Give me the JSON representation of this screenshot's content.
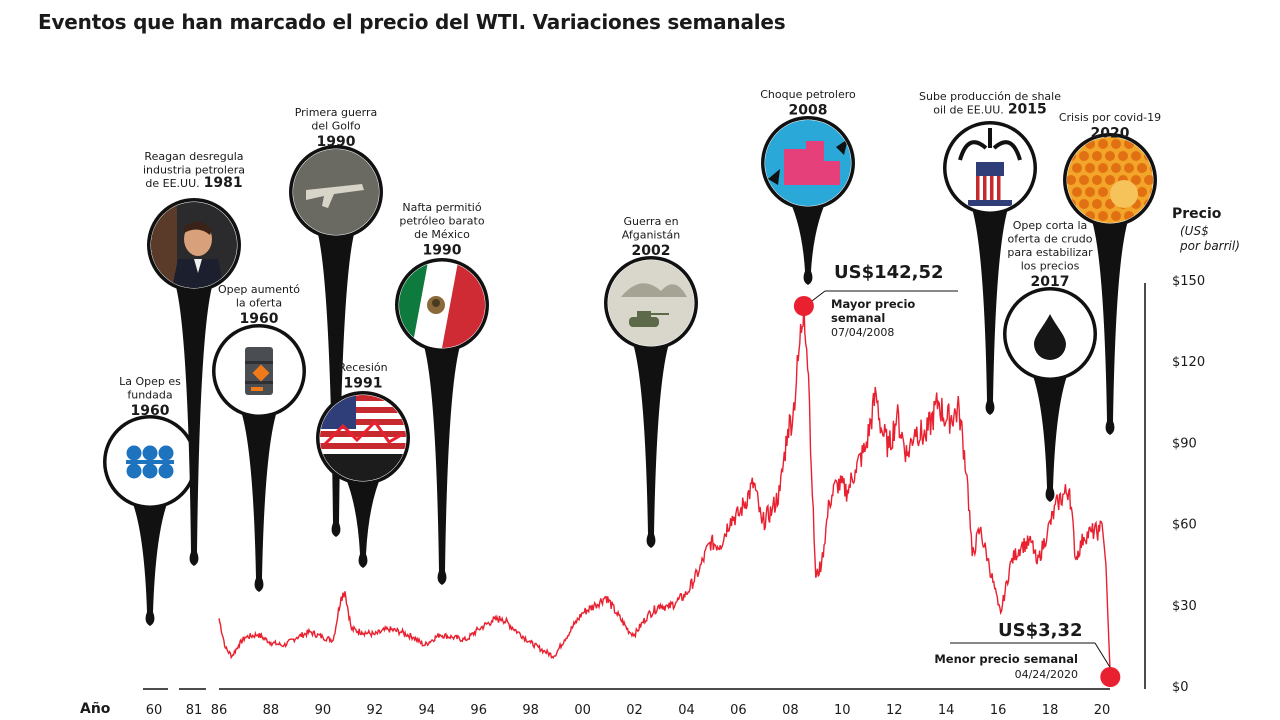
{
  "title": "Eventos que han marcado el precio del WTI. Variaciones semanales",
  "colors": {
    "line": "#e8202f",
    "ink": "#111111",
    "marker": "#e8202f"
  },
  "chart_data": {
    "type": "line",
    "title": "Eventos que han marcado el precio del WTI. Variaciones semanales",
    "xlabel": "Año",
    "ylabel": "Precio",
    "ylabel_unit": "(US$ por barril)",
    "ylim": [
      0,
      150
    ],
    "xlim": [
      1986,
      2020.5
    ],
    "y_ticks": [
      {
        "value": 150,
        "label": "$150"
      },
      {
        "value": 120,
        "label": "$120"
      },
      {
        "value": 90,
        "label": "$90"
      },
      {
        "value": 60,
        "label": "$60"
      },
      {
        "value": 30,
        "label": "$30"
      },
      {
        "value": 0,
        "label": "$0"
      }
    ],
    "x_ticks_pre": [
      "60",
      "81"
    ],
    "x_ticks": [
      {
        "value": 1986,
        "label": "86"
      },
      {
        "value": 1988,
        "label": "88"
      },
      {
        "value": 1990,
        "label": "90"
      },
      {
        "value": 1992,
        "label": "92"
      },
      {
        "value": 1994,
        "label": "94"
      },
      {
        "value": 1996,
        "label": "96"
      },
      {
        "value": 1998,
        "label": "98"
      },
      {
        "value": 2000,
        "label": "00"
      },
      {
        "value": 2002,
        "label": "02"
      },
      {
        "value": 2004,
        "label": "04"
      },
      {
        "value": 2006,
        "label": "06"
      },
      {
        "value": 2008,
        "label": "08"
      },
      {
        "value": 2010,
        "label": "10"
      },
      {
        "value": 2012,
        "label": "12"
      },
      {
        "value": 2014,
        "label": "14"
      },
      {
        "value": 2016,
        "label": "16"
      },
      {
        "value": 2018,
        "label": "18"
      },
      {
        "value": 2020,
        "label": "20"
      }
    ],
    "series": [
      {
        "x": [
          1986.0,
          1986.25,
          1986.5,
          1986.75,
          1987.0,
          1987.5,
          1988.0,
          1988.5,
          1989.0,
          1989.5,
          1990.0,
          1990.4,
          1990.7,
          1990.85,
          1991.1,
          1991.5,
          1992.0,
          1992.5,
          1993.0,
          1993.5,
          1993.9,
          1994.5,
          1995.0,
          1995.5,
          1996.0,
          1996.5,
          1996.9,
          1997.5,
          1998.0,
          1998.5,
          1998.9,
          1999.3,
          1999.7,
          2000.0,
          2000.5,
          2000.9,
          2001.3,
          2001.8,
          2002.0,
          2002.5,
          2003.0,
          2003.3,
          2003.6,
          2004.0,
          2004.5,
          2004.9,
          2005.3,
          2005.7,
          2006.0,
          2006.6,
          2006.9,
          2007.3,
          2007.6,
          2007.9,
          2008.1,
          2008.3,
          2008.52,
          2008.7,
          2008.85,
          2008.98,
          2009.2,
          2009.5,
          2009.8,
          2010.2,
          2010.5,
          2010.9,
          2011.3,
          2011.5,
          2011.8,
          2012.1,
          2012.5,
          2012.8,
          2013.2,
          2013.7,
          2014.0,
          2014.5,
          2014.8,
          2015.0,
          2015.3,
          2015.6,
          2016.0,
          2016.1,
          2016.5,
          2016.9,
          2017.3,
          2017.5,
          2017.9,
          2018.3,
          2018.75,
          2018.98,
          2019.3,
          2019.6,
          2019.9,
          2020.0,
          2020.15,
          2020.25,
          2020.32
        ],
        "y": [
          25,
          14,
          11,
          15,
          18,
          19,
          16,
          15,
          18,
          20,
          18,
          17,
          33,
          35,
          21,
          20,
          19,
          21,
          20,
          18,
          15,
          19,
          18,
          17,
          21,
          24,
          25,
          20,
          16,
          13,
          11,
          17,
          23,
          27,
          30,
          33,
          27,
          20,
          19,
          26,
          30,
          29,
          31,
          34,
          43,
          53,
          52,
          62,
          63,
          75,
          60,
          65,
          72,
          95,
          100,
          120,
          142.52,
          115,
          70,
          40,
          45,
          68,
          75,
          72,
          80,
          88,
          108,
          95,
          88,
          100,
          85,
          95,
          92,
          105,
          98,
          102,
          78,
          48,
          58,
          47,
          30,
          27,
          46,
          52,
          53,
          45,
          57,
          68,
          73,
          47,
          55,
          57,
          57,
          60,
          45,
          20,
          3.32
        ]
      }
    ],
    "annotations": [
      {
        "value_label": "US$142,52",
        "label": "Mayor precio semanal",
        "date": "07/04/2008"
      },
      {
        "value_label": "US$3,32",
        "label": "Menor precio semanal",
        "date": "04/24/2020"
      }
    ],
    "events": [
      {
        "id": "opep-fundada",
        "lines": [
          "La Opep es",
          "fundada"
        ],
        "year": "1960",
        "icon": "opec-logo-icon"
      },
      {
        "id": "reagan",
        "lines": [
          "Reagan desregula",
          "industria petrolera",
          "de EE.UU."
        ],
        "year": "1981",
        "icon": "reagan-portrait-icon"
      },
      {
        "id": "opep-aumento",
        "lines": [
          "Opep aumentó",
          "la oferta"
        ],
        "year": "1960",
        "icon": "oil-barrel-icon"
      },
      {
        "id": "guerra-golfo",
        "lines": [
          "Primera guerra",
          "del Golfo"
        ],
        "year": "1990",
        "icon": "rifle-icon"
      },
      {
        "id": "recesion",
        "lines": [
          "Recesión"
        ],
        "year": "1991",
        "icon": "us-flag-crash-icon"
      },
      {
        "id": "nafta",
        "lines": [
          "Nafta permitió",
          "petróleo barato",
          "de México"
        ],
        "year": "1990",
        "icon": "mexico-flag-icon"
      },
      {
        "id": "afganistan",
        "lines": [
          "Guerra en",
          "Afganistán"
        ],
        "year": "2002",
        "icon": "tank-icon"
      },
      {
        "id": "choque",
        "lines": [
          "Choque petrolero"
        ],
        "year": "2008",
        "icon": "oil-shock-icon"
      },
      {
        "id": "shale",
        "lines": [
          "Sube producción de shale",
          "oil de EE.UU."
        ],
        "year": "2015",
        "icon": "uncle-sam-hat-icon"
      },
      {
        "id": "opep-corta",
        "lines": [
          "Opep corta la",
          "oferta de crudo",
          "para estabilizar",
          "los precios"
        ],
        "year": "2017",
        "icon": "oil-drop-icon"
      },
      {
        "id": "covid",
        "lines": [
          "Crisis por covid-19"
        ],
        "year": "2020",
        "icon": "virus-pattern-icon"
      }
    ]
  }
}
